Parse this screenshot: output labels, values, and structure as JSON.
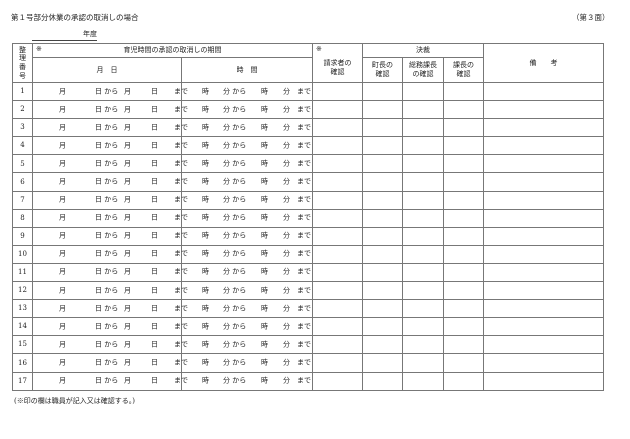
{
  "header": {
    "title": "第１号部分休業の承認の取消しの場合",
    "page_no": "（第３面）",
    "year_label": "年度"
  },
  "table": {
    "mark": "※",
    "col_no": "整理番号",
    "group_period": "育児時間の承認の取消しの期間",
    "col_date": "月　日",
    "col_time": "時　間",
    "col_requester": "請求者の確認",
    "group_approval": "決裁",
    "col_mayor": "町長の確認",
    "col_general_affairs": "総務課長の確認",
    "col_section_chief": "課長の確認",
    "col_remarks": "備　　考",
    "date_parts": [
      "月",
      "日 から",
      "月",
      "日",
      "まで"
    ],
    "time_parts": [
      "時",
      "分 から",
      "時",
      "分",
      "まで"
    ],
    "rows": [
      "1",
      "2",
      "3",
      "4",
      "5",
      "6",
      "7",
      "8",
      "9",
      "10",
      "11",
      "12",
      "13",
      "14",
      "15",
      "16",
      "17"
    ]
  },
  "footer": {
    "note": "(※印の欄は職員が記入又は確認する。)"
  }
}
